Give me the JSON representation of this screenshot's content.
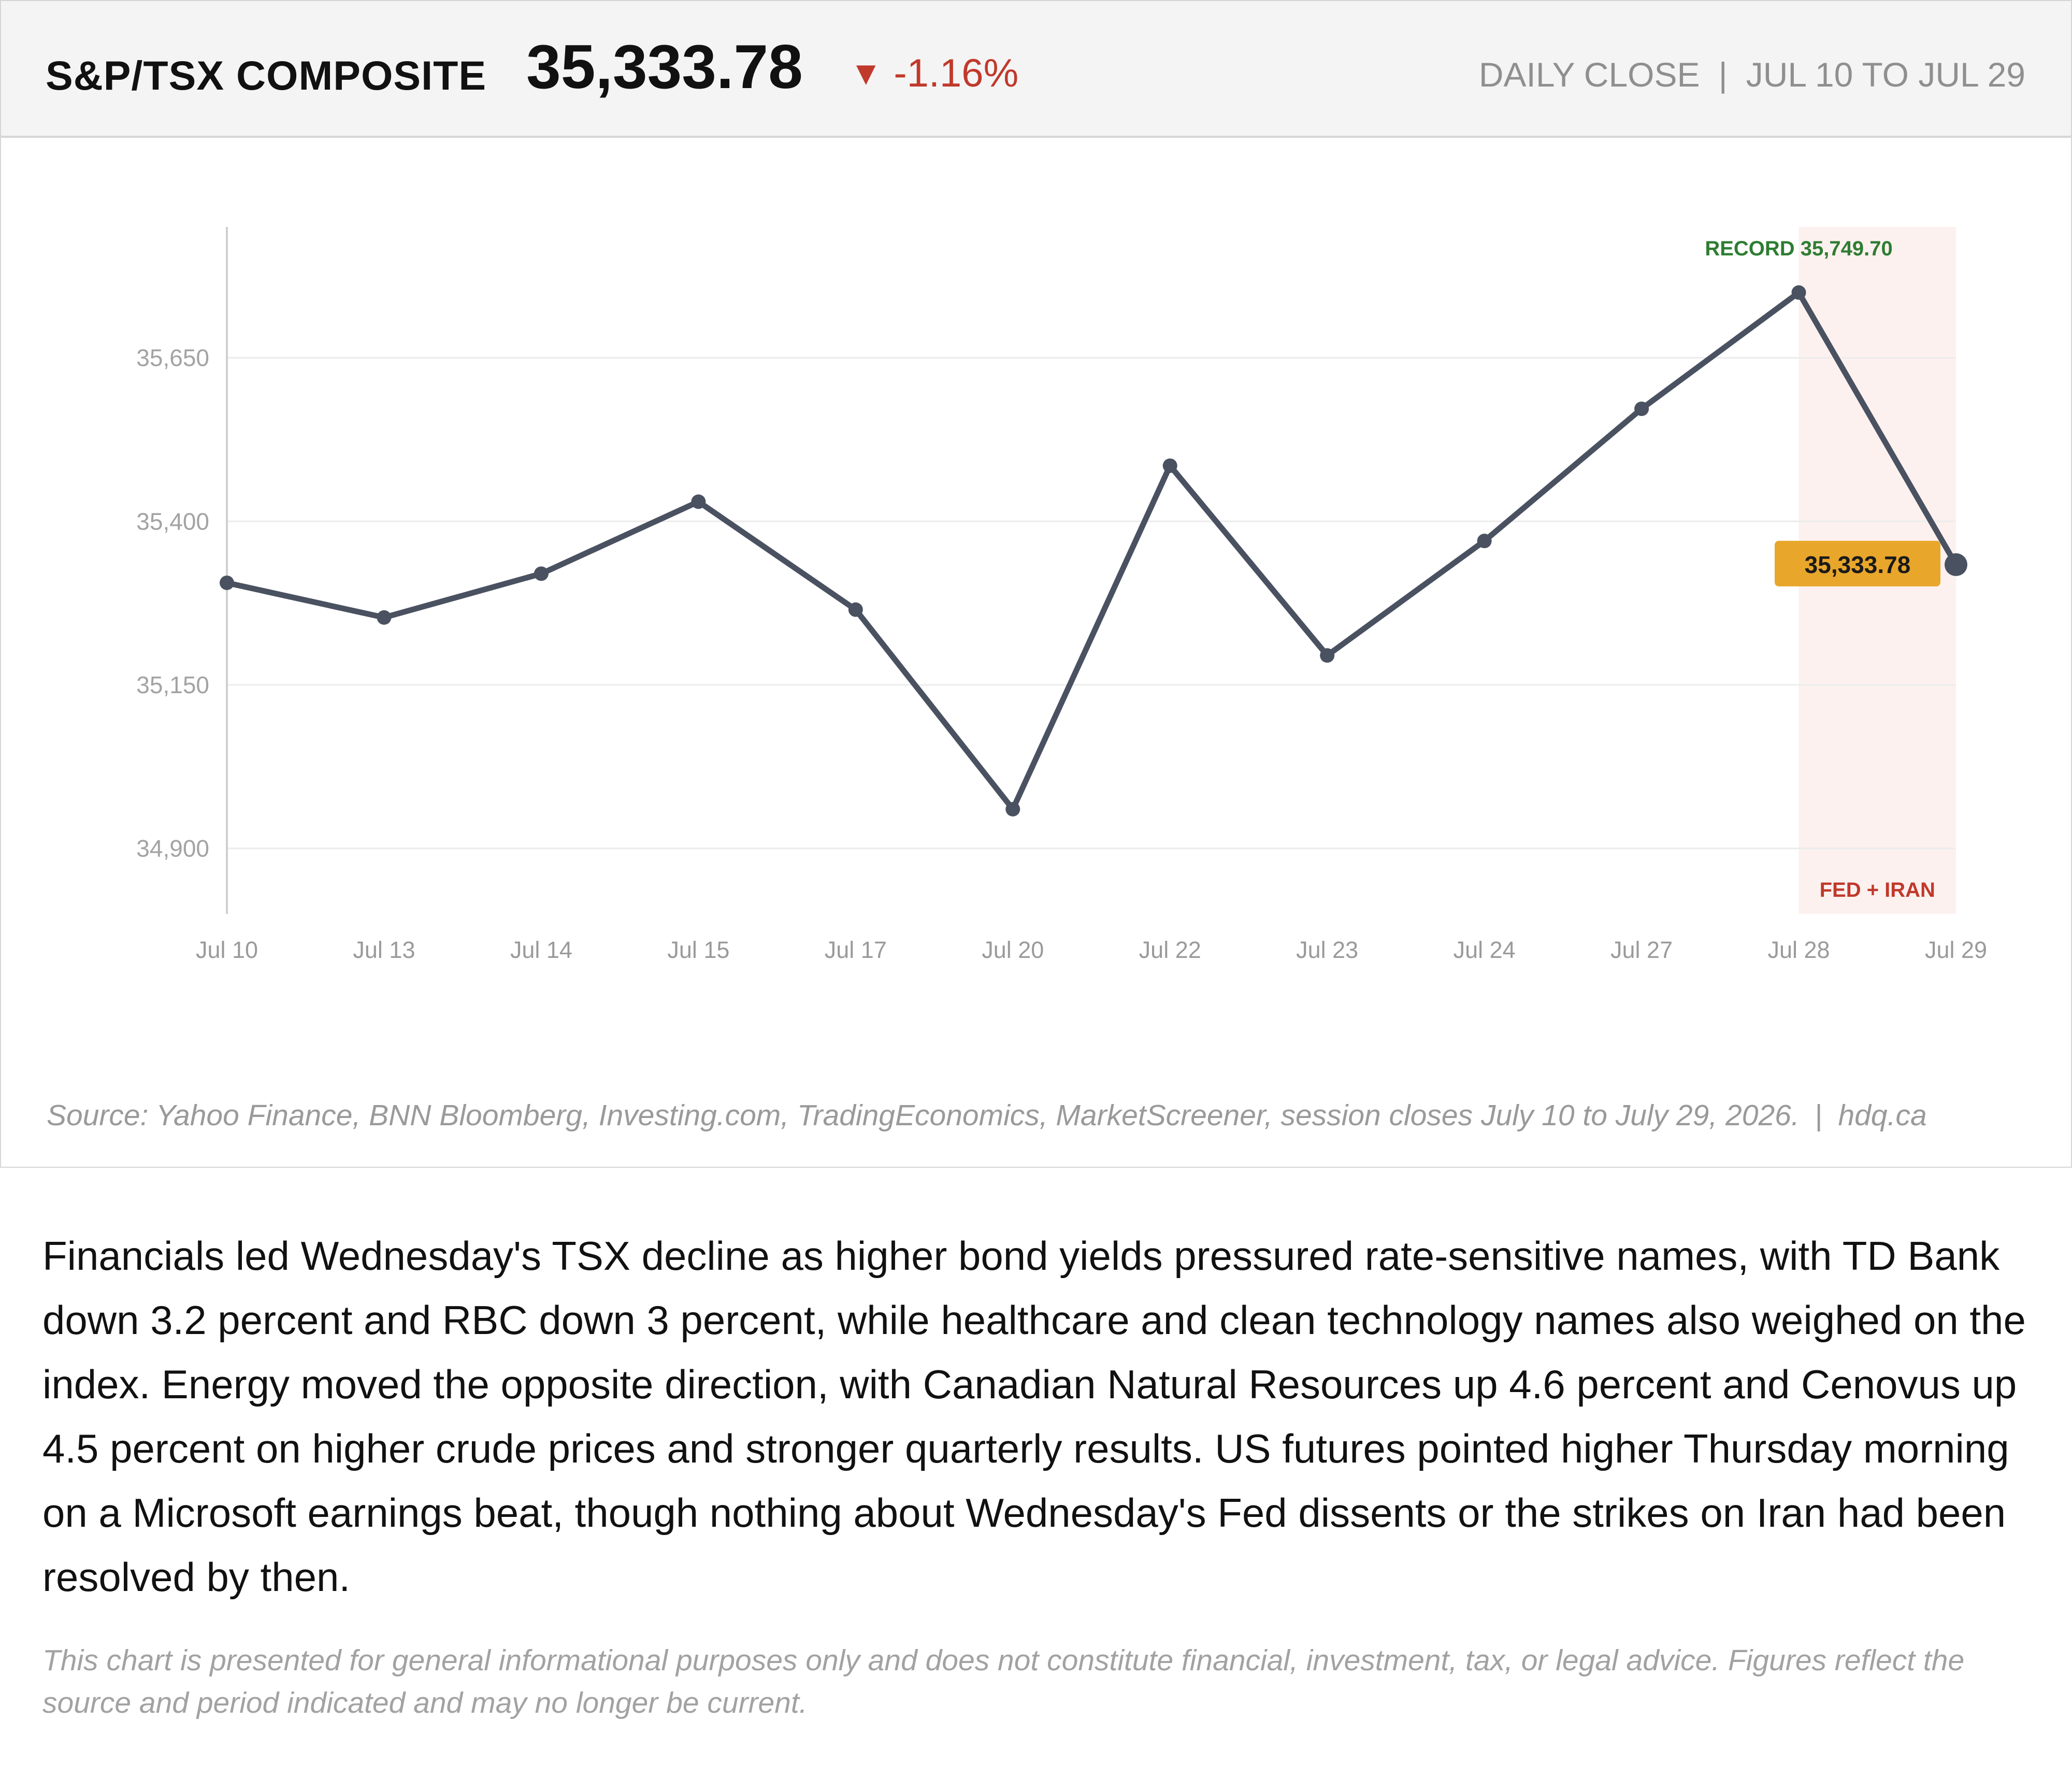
{
  "header": {
    "title": "S&P/TSX COMPOSITE",
    "value": "35,333.78",
    "change_arrow": "▼",
    "change": "-1.16%",
    "period_label": "DAILY CLOSE",
    "separator": "|",
    "date_range": "JUL 10 TO JUL 29"
  },
  "colors": {
    "line": "#4a5160",
    "negative": "#c0392b",
    "record": "#2e7d32",
    "highlight_band": "#fdf1ef",
    "callout": "#e8a62b"
  },
  "chart_data": {
    "type": "line",
    "title": "",
    "xlabel": "",
    "ylabel": "",
    "categories": [
      "Jul 10",
      "Jul 13",
      "Jul 14",
      "Jul 15",
      "Jul 17",
      "Jul 20",
      "Jul 22",
      "Jul 23",
      "Jul 24",
      "Jul 27",
      "Jul 28",
      "Jul 29"
    ],
    "series": [
      {
        "name": "",
        "values": [
          35306,
          35253,
          35320,
          35430,
          35265,
          34960,
          35485,
          35195,
          35370,
          35572,
          35749.7,
          35333.78
        ]
      }
    ],
    "ylim": [
      34800,
      35850
    ],
    "yticks": [
      34900,
      35150,
      35400,
      35650
    ],
    "ytick_labels": [
      "34,900",
      "35,150",
      "35,400",
      "35,650"
    ],
    "grid": true,
    "annotations": {
      "record_label": "RECORD 35,749.70",
      "last_value_label": "35,333.78",
      "event_label": "FED + IRAN",
      "event_band_categories": [
        "Jul 28",
        "Jul 29"
      ]
    }
  },
  "source": {
    "text": "Source: Yahoo Finance, BNN Bloomberg, Investing.com, TradingEconomics, MarketScreener, session closes July 10 to July 29, 2026.",
    "separator": "|",
    "site": "hdq.ca"
  },
  "article": {
    "paragraph": "Financials led Wednesday's TSX decline as higher bond yields pressured rate-sensitive names, with TD Bank down 3.2 percent and RBC down 3 percent, while healthcare and clean technology names also weighed on the index. Energy moved the opposite direction, with Canadian Natural Resources up 4.6 percent and Cenovus up 4.5 percent on higher crude prices and stronger quarterly results. US futures pointed higher Thursday morning on a Microsoft earnings beat, though nothing about Wednesday's Fed dissents or the strikes on Iran had been resolved by then."
  },
  "disclaimer": "This chart is presented for general informational purposes only and does not constitute financial, investment, tax, or legal advice. Figures reflect the source and period indicated and may no longer be current."
}
